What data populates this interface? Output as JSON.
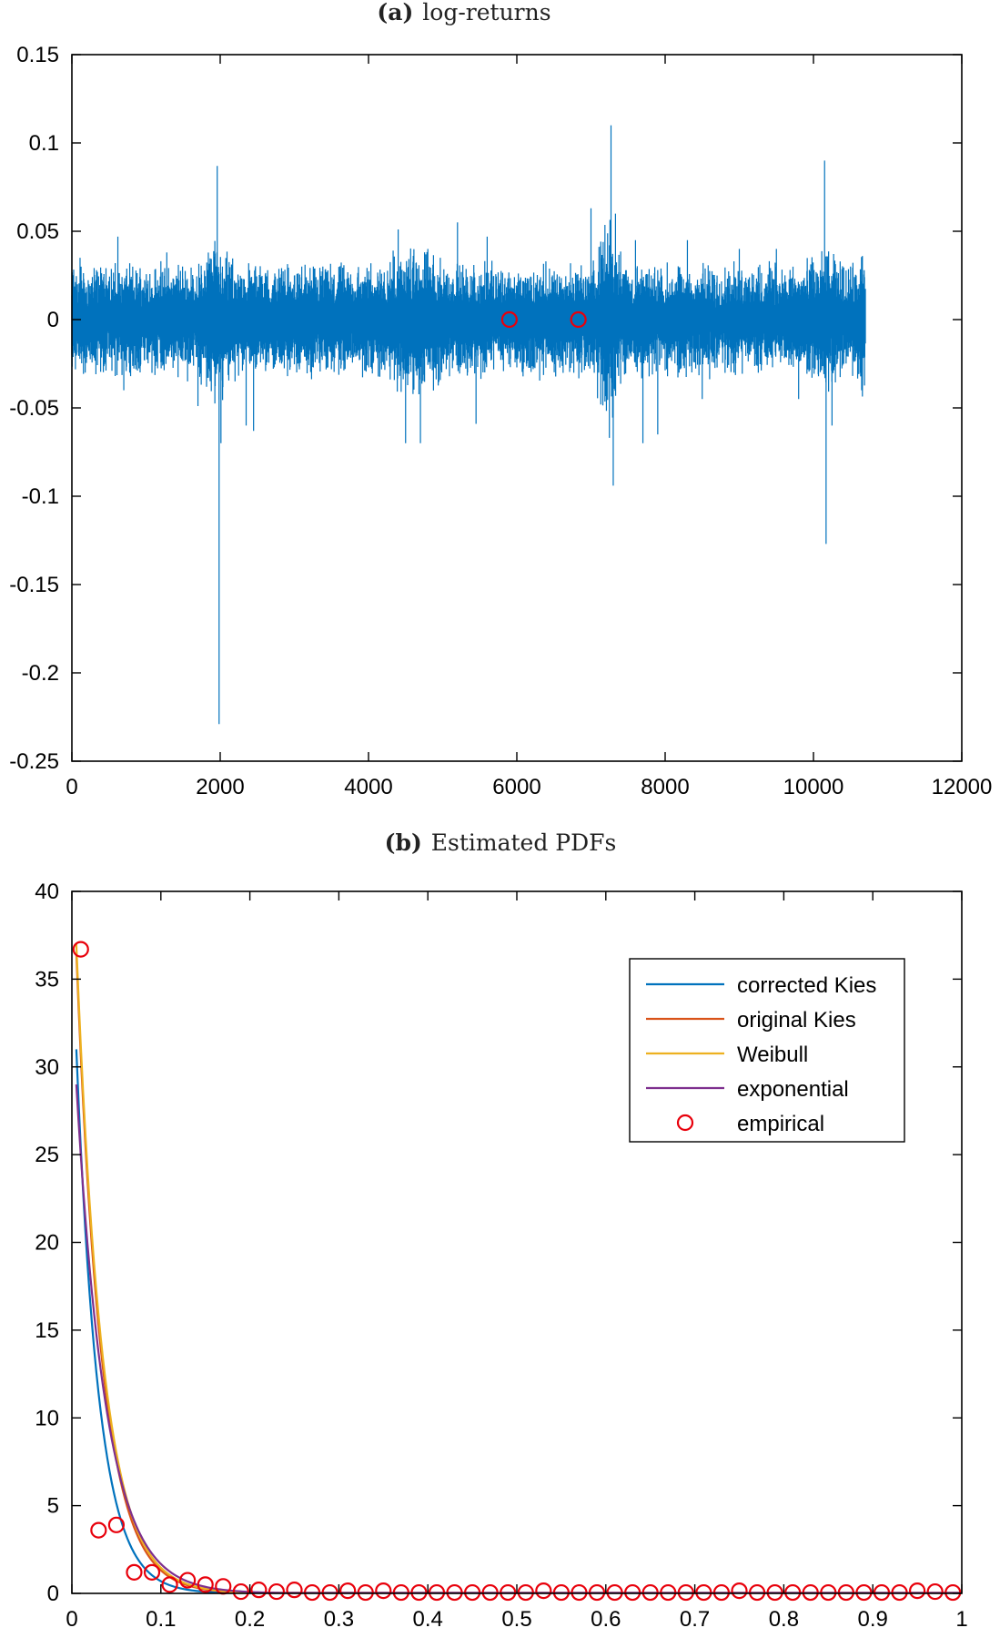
{
  "chart_data": [
    {
      "type": "line",
      "title_tag": "(a)",
      "title": "log-returns",
      "xlim": [
        0,
        12000
      ],
      "ylim": [
        -0.25,
        0.15
      ],
      "x_ticks": [
        "0",
        "2000",
        "4000",
        "6000",
        "8000",
        "10000",
        "12000"
      ],
      "y_ticks": [
        "-0.25",
        "-0.2",
        "-0.15",
        "-0.1",
        "-0.05",
        "0",
        "0.05",
        "0.1",
        "0.15"
      ],
      "grid": false,
      "series": [
        {
          "color": "#0072BD",
          "n_points": 10700,
          "baseline_amplitude": 0.012,
          "spikes": [
            {
              "x": 110,
              "y": 0.035
            },
            {
              "x": 180,
              "y": -0.03
            },
            {
              "x": 620,
              "y": 0.047
            },
            {
              "x": 700,
              "y": -0.04
            },
            {
              "x": 1280,
              "y": 0.038
            },
            {
              "x": 1560,
              "y": -0.035
            },
            {
              "x": 1700,
              "y": -0.049
            },
            {
              "x": 1960,
              "y": 0.087
            },
            {
              "x": 1985,
              "y": -0.229
            },
            {
              "x": 2010,
              "y": -0.07
            },
            {
              "x": 2030,
              "y": 0.03
            },
            {
              "x": 2200,
              "y": -0.035
            },
            {
              "x": 2350,
              "y": -0.06
            },
            {
              "x": 2450,
              "y": -0.063
            },
            {
              "x": 3100,
              "y": 0.03
            },
            {
              "x": 4400,
              "y": 0.051
            },
            {
              "x": 4500,
              "y": -0.07
            },
            {
              "x": 4700,
              "y": -0.07
            },
            {
              "x": 4800,
              "y": 0.04
            },
            {
              "x": 5200,
              "y": 0.055
            },
            {
              "x": 5450,
              "y": -0.059
            },
            {
              "x": 5600,
              "y": 0.047
            },
            {
              "x": 7000,
              "y": 0.063
            },
            {
              "x": 7270,
              "y": 0.11
            },
            {
              "x": 7300,
              "y": -0.094
            },
            {
              "x": 7330,
              "y": 0.06
            },
            {
              "x": 7600,
              "y": 0.045
            },
            {
              "x": 7700,
              "y": -0.07
            },
            {
              "x": 7900,
              "y": -0.065
            },
            {
              "x": 8300,
              "y": 0.045
            },
            {
              "x": 8500,
              "y": -0.045
            },
            {
              "x": 9000,
              "y": 0.04
            },
            {
              "x": 9500,
              "y": 0.04
            },
            {
              "x": 9800,
              "y": -0.045
            },
            {
              "x": 10150,
              "y": 0.09
            },
            {
              "x": 10170,
              "y": -0.127
            },
            {
              "x": 10250,
              "y": -0.06
            },
            {
              "x": 10500,
              "y": 0.03
            },
            {
              "x": 10650,
              "y": -0.04
            }
          ]
        }
      ],
      "markers": [
        {
          "x": 5900,
          "y": 0.0,
          "color": "#e8000b"
        },
        {
          "x": 6830,
          "y": 0.0,
          "color": "#e8000b"
        }
      ]
    },
    {
      "type": "line",
      "title_tag": "(b)",
      "title": "Estimated PDFs",
      "xlim": [
        0,
        1
      ],
      "ylim": [
        0,
        40
      ],
      "x_ticks": [
        "0",
        "0.1",
        "0.2",
        "0.3",
        "0.4",
        "0.5",
        "0.6",
        "0.7",
        "0.8",
        "0.9",
        "1"
      ],
      "y_ticks": [
        "0",
        "5",
        "10",
        "15",
        "20",
        "25",
        "30",
        "35",
        "40"
      ],
      "grid": false,
      "legend_position": "top-right",
      "series": [
        {
          "name": "corrected Kies",
          "color": "#0072BD",
          "start": [
            0.005,
            31
          ],
          "rate": 40
        },
        {
          "name": "original Kies",
          "color": "#D95319",
          "start": [
            0.005,
            36.5
          ],
          "rate": 35
        },
        {
          "name": "Weibull",
          "color": "#EDB120",
          "start": [
            0.005,
            37
          ],
          "rate": 34
        },
        {
          "name": "exponential",
          "color": "#7E2F8E",
          "start": [
            0.005,
            29
          ],
          "rate": 30
        }
      ],
      "empirical": {
        "name": "empirical",
        "color": "#e8000b",
        "x": [
          0.01,
          0.03,
          0.05,
          0.07,
          0.09,
          0.11,
          0.13,
          0.15,
          0.17,
          0.19,
          0.21,
          0.23,
          0.25,
          0.27,
          0.29,
          0.31,
          0.33,
          0.35,
          0.37,
          0.39,
          0.41,
          0.43,
          0.45,
          0.47,
          0.49,
          0.51,
          0.53,
          0.55,
          0.57,
          0.59,
          0.61,
          0.63,
          0.65,
          0.67,
          0.69,
          0.71,
          0.73,
          0.75,
          0.77,
          0.79,
          0.81,
          0.83,
          0.85,
          0.87,
          0.89,
          0.91,
          0.93,
          0.95,
          0.97,
          0.99
        ],
        "y": [
          36.7,
          3.6,
          3.9,
          1.2,
          1.2,
          0.5,
          0.75,
          0.5,
          0.4,
          0.1,
          0.2,
          0.1,
          0.2,
          0.05,
          0.05,
          0.15,
          0.05,
          0.15,
          0.05,
          0.05,
          0.05,
          0.05,
          0.05,
          0.05,
          0.05,
          0.05,
          0.15,
          0.05,
          0.05,
          0.05,
          0.05,
          0.05,
          0.05,
          0.05,
          0.05,
          0.05,
          0.05,
          0.15,
          0.05,
          0.05,
          0.05,
          0.05,
          0.05,
          0.05,
          0.05,
          0.05,
          0.05,
          0.15,
          0.1,
          0.05
        ]
      }
    }
  ]
}
